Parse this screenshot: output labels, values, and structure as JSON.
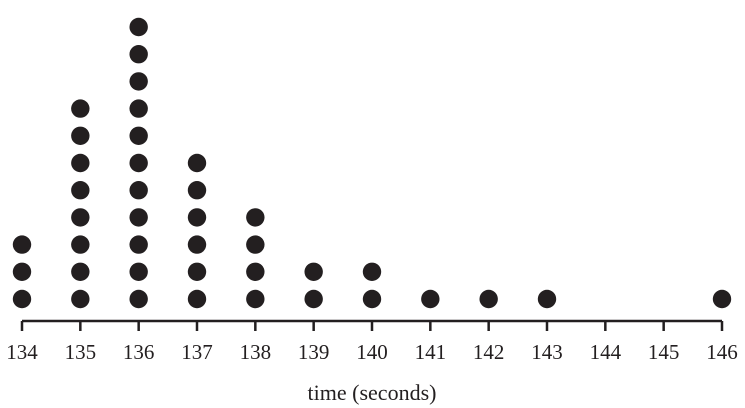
{
  "chart_data": {
    "type": "dot_plot",
    "title": "",
    "xlabel": "time (seconds)",
    "ylabel": "",
    "xlim": [
      134,
      146
    ],
    "ticks": [
      "134",
      "135",
      "136",
      "137",
      "138",
      "139",
      "140",
      "141",
      "142",
      "143",
      "144",
      "145",
      "146"
    ],
    "points": [
      {
        "x": 134,
        "count": 3
      },
      {
        "x": 135,
        "count": 8
      },
      {
        "x": 136,
        "count": 11
      },
      {
        "x": 137,
        "count": 6
      },
      {
        "x": 138,
        "count": 4
      },
      {
        "x": 139,
        "count": 2
      },
      {
        "x": 140,
        "count": 2
      },
      {
        "x": 141,
        "count": 1
      },
      {
        "x": 142,
        "count": 1
      },
      {
        "x": 143,
        "count": 1
      },
      {
        "x": 144,
        "count": 0
      },
      {
        "x": 145,
        "count": 0
      },
      {
        "x": 146,
        "count": 1
      }
    ],
    "grid": false,
    "colors": {
      "dot": "#231f20",
      "axis": "#231f20"
    }
  }
}
